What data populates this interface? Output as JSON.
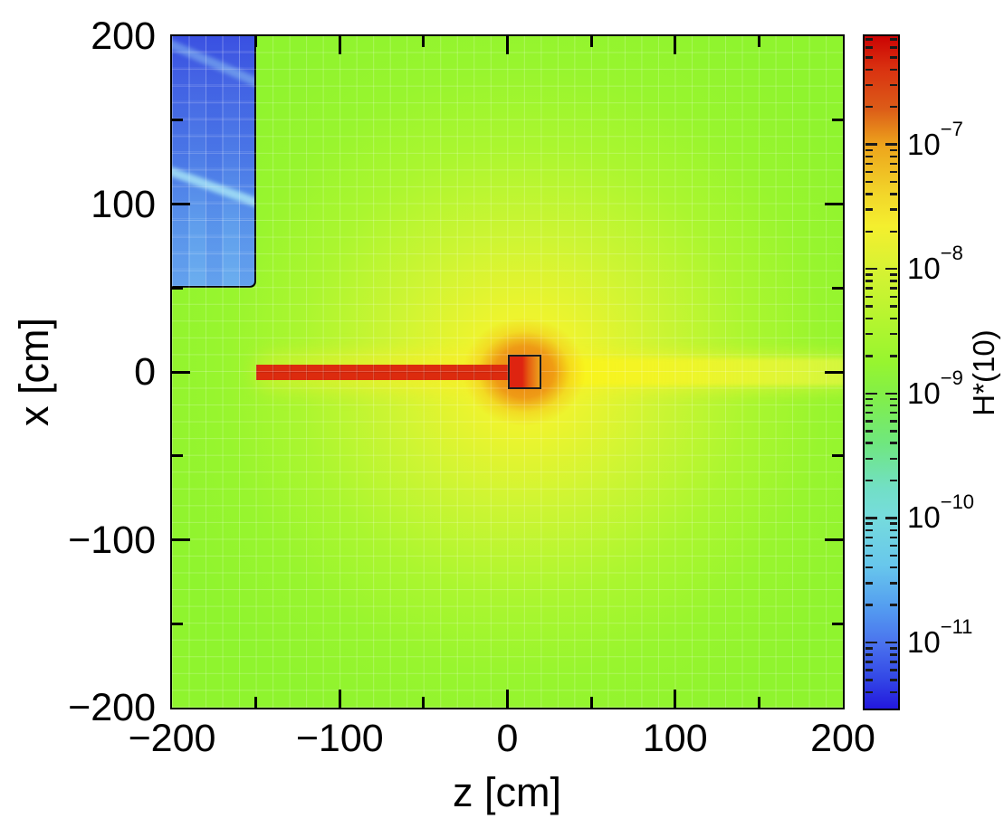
{
  "figure": {
    "background_color": "#ffffff",
    "text_color": "#000000"
  },
  "axes": {
    "x_title": "z [cm]",
    "y_title": "x [cm]",
    "x_tick_labels": [
      "−200",
      "−100",
      "0",
      "100",
      "200"
    ],
    "y_tick_labels": [
      "200",
      "100",
      "0",
      "−100",
      "−200"
    ]
  },
  "colorbar": {
    "title": "H*(10)",
    "scale": "log",
    "tick_labels": [
      {
        "base": "10",
        "exp": "−7",
        "e": -7
      },
      {
        "base": "10",
        "exp": "−8",
        "e": -8
      },
      {
        "base": "10",
        "exp": "−9",
        "e": -9
      },
      {
        "base": "10",
        "exp": "−10",
        "e": -10
      },
      {
        "base": "10",
        "exp": "−11",
        "e": -11
      }
    ],
    "gradient_stops": [
      [
        0.0,
        "#CC0303"
      ],
      [
        0.047,
        "#D93010"
      ],
      [
        0.108,
        "#DC5C18"
      ],
      [
        0.162,
        "#EDA41C"
      ],
      [
        0.235,
        "#F2D62A"
      ],
      [
        0.283,
        "#F4EF2E"
      ],
      [
        0.343,
        "#D9F233"
      ],
      [
        0.417,
        "#B7F52F"
      ],
      [
        0.485,
        "#97F52F"
      ],
      [
        0.534,
        "#82EF48"
      ],
      [
        0.606,
        "#6FE77F"
      ],
      [
        0.673,
        "#72DFC6"
      ],
      [
        0.713,
        "#76DCDC"
      ],
      [
        0.787,
        "#68C7EC"
      ],
      [
        0.848,
        "#549EF0"
      ],
      [
        0.904,
        "#4A72EE"
      ],
      [
        0.956,
        "#3347E6"
      ],
      [
        1.0,
        "#2318DD"
      ]
    ]
  },
  "chart_data": {
    "type": "heatmap",
    "title": "",
    "xlabel": "z [cm]",
    "ylabel": "x [cm]",
    "xlim": [
      -200,
      200
    ],
    "ylim": [
      -200,
      200
    ],
    "x_major_ticks": [
      -200,
      -100,
      0,
      100,
      200
    ],
    "x_minor_ticks": [
      -150,
      -50,
      50,
      150
    ],
    "y_major_ticks": [
      200,
      100,
      0,
      -100,
      -200
    ],
    "y_minor_ticks": [
      150,
      50,
      -50,
      -150
    ],
    "grid": "10 cm mesh, faint light lines",
    "legend_position": "right colorbar",
    "colorbar_label": "H*(10)",
    "colorbar_decades": [
      1e-07,
      1e-08,
      1e-09,
      1e-10,
      1e-11
    ],
    "colorbar_value_top": 7.4e-07,
    "colorbar_value_bottom": 3e-12,
    "background_dose_color": "#8FF42E",
    "features": [
      {
        "name": "shield-block",
        "description": "low-dose rectangular block, pixelated blue, outlined in black on right and bottom edges, with lighter diagonal streaks",
        "z_range": [
          -200,
          -150
        ],
        "x_range": [
          50,
          200
        ],
        "color_top": "#3B51E1",
        "color_bottom": "#6BAEEF",
        "streak_color": "#A5E2F6",
        "streaks": [
          {
            "from": {
              "z": -200,
              "x": 120
            },
            "to": {
              "z": -150,
              "x": 102
            },
            "opacity": 0.85
          },
          {
            "from": {
              "z": -200,
              "x": 196
            },
            "to": {
              "z": -150,
              "x": 174
            },
            "opacity": 0.4
          }
        ],
        "approx_value": "1e-11 to 1e-10"
      },
      {
        "name": "beamline-bar",
        "description": "thin horizontal saturated red bar (beam) along x=0 from z=-150 to the target",
        "z_range": [
          -150,
          10
        ],
        "x_range": [
          -5,
          4.5
        ],
        "color": "#DC2B0E",
        "approx_value": "above 1e-7"
      },
      {
        "name": "target-outline",
        "description": "small black-outlined square at beam end; red on left half, orange on right half",
        "z_range": [
          0,
          20
        ],
        "x_range": [
          -10,
          10
        ],
        "border_color": "#1C1C1C",
        "fill_left": "#DE2410",
        "fill_right": "#ECA01C"
      },
      {
        "name": "forward-beam-band",
        "description": "bright yellow horizontal band streaming from target to right plot edge",
        "z_range": [
          12,
          200
        ],
        "x_range": [
          -8,
          8
        ],
        "color": "#F5EF1C"
      },
      {
        "name": "dose-halo",
        "description": "radial dose gradient centered on target, yellow core fading into green background",
        "center": {
          "z": 10,
          "x": 0
        },
        "radius_cm": 230,
        "core_color": "#F5F02A",
        "mid_color": "#CDF533",
        "background_color": "#8FF42E"
      },
      {
        "name": "target-orange-halo",
        "description": "one-cell orange ring hugging the target square",
        "center": {
          "z": 10,
          "x": 0
        },
        "radius_cm": 32,
        "color": "#ED7D12"
      }
    ]
  }
}
